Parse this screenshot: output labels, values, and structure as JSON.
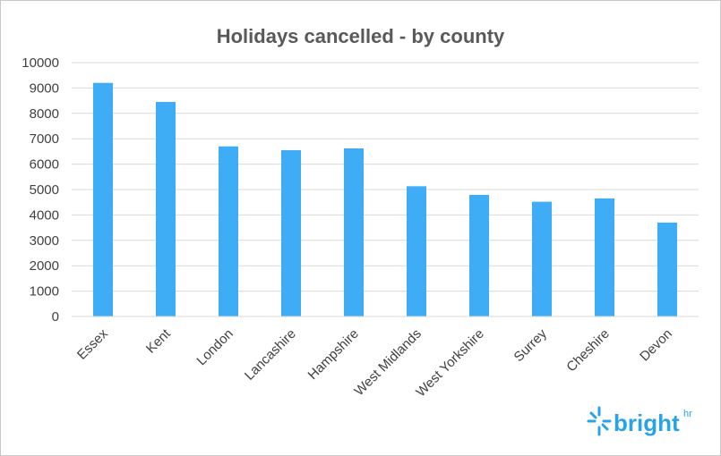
{
  "chart_data": {
    "type": "bar",
    "title": "Holidays cancelled - by county",
    "categories": [
      "Essex",
      "Kent",
      "London",
      "Lancashire",
      "Hampshire",
      "West Midlands",
      "West Yorkshire",
      "Surrey",
      "Cheshire",
      "Devon"
    ],
    "values": [
      9200,
      8450,
      6700,
      6550,
      6620,
      5130,
      4790,
      4520,
      4650,
      3700
    ],
    "ylim": [
      0,
      10000
    ],
    "yticks": [
      0,
      1000,
      2000,
      3000,
      4000,
      5000,
      6000,
      7000,
      8000,
      9000,
      10000
    ],
    "grid": true,
    "bar_color": "#3eadf5",
    "grid_color": "#d9d9d9"
  },
  "branding": {
    "logo_text": "bright",
    "logo_superscript": "hr",
    "logo_color": "#29a3e8"
  }
}
